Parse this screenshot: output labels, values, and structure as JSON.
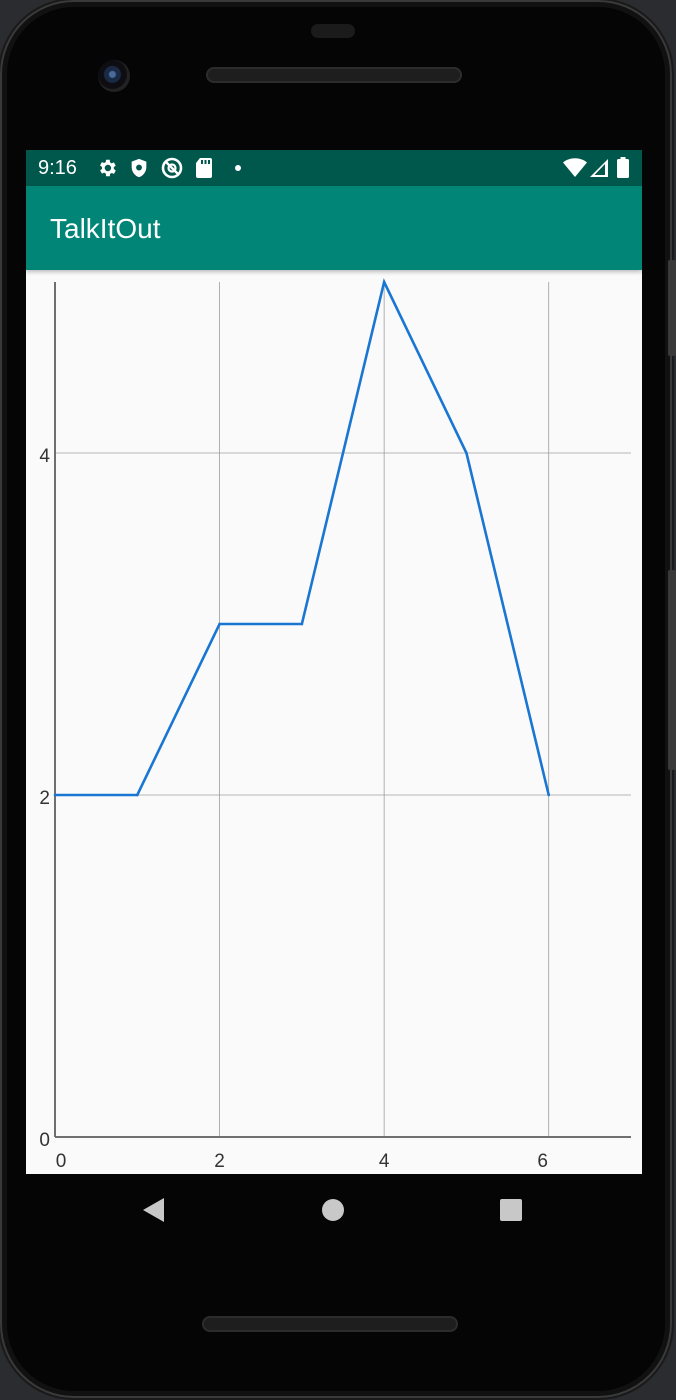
{
  "status_bar": {
    "time": "9:16",
    "icons": [
      "gear-icon",
      "shield-icon",
      "do-not-disturb-icon",
      "sd-card-icon",
      "notification-dot-icon",
      "wifi-icon",
      "signal-icon",
      "battery-icon"
    ]
  },
  "app_bar": {
    "title": "TalkItOut"
  },
  "chart_data": {
    "type": "line",
    "x": [
      0,
      1,
      2,
      3,
      4,
      5,
      6
    ],
    "series": [
      {
        "values": [
          2,
          2,
          3,
          3,
          5,
          4,
          2
        ],
        "color": "#1976d2"
      }
    ],
    "xlim": [
      0,
      7
    ],
    "ylim": [
      0,
      5
    ],
    "xticks": [
      0,
      2,
      4,
      6
    ],
    "yticks": [
      0,
      2,
      4
    ],
    "x_tick_labels": [
      "0",
      "2",
      "4",
      "6"
    ],
    "y_tick_labels": [
      "0",
      "2",
      "4"
    ],
    "grid": true
  },
  "nav_bar": {
    "buttons": [
      "back-icon",
      "home-icon",
      "recents-icon"
    ]
  }
}
